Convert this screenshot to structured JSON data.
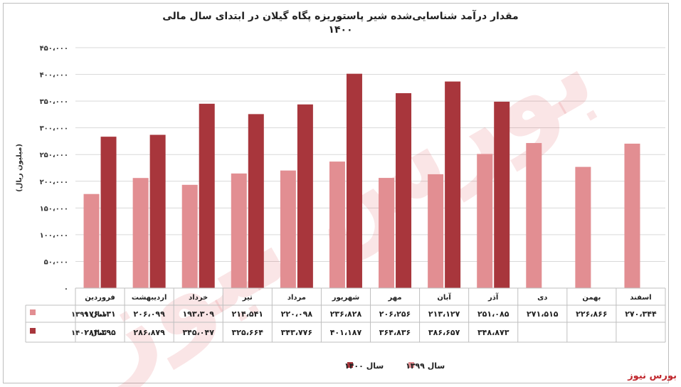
{
  "chart_data": {
    "type": "bar",
    "title": "مقدار درآمد شناسایی‌شده شیر پاستوریزه پگاه گیلان در ابتدای سال مالی ۱۴۰۰",
    "ylabel": "(میلیون ریال)",
    "ylim": [
      0,
      450000
    ],
    "ytick_labels": [
      "۰",
      "۵۰،۰۰۰",
      "۱۰۰،۰۰۰",
      "۱۵۰،۰۰۰",
      "۲۰۰،۰۰۰",
      "۲۵۰،۰۰۰",
      "۳۰۰،۰۰۰",
      "۳۵۰،۰۰۰",
      "۴۰۰،۰۰۰",
      "۴۵۰،۰۰۰"
    ],
    "categories": [
      "فروردین",
      "اردیبهشت",
      "خرداد",
      "تیر",
      "مرداد",
      "شهریور",
      "مهر",
      "آبان",
      "آذر",
      "دی",
      "بهمن",
      "اسفند"
    ],
    "series": [
      {
        "name": "سال ۱۳۹۹",
        "color": "#e28e92",
        "values": [
          176131,
          206099,
          193309,
          214541,
          220098,
          236828,
          206256,
          213127,
          251085,
          271515,
          226866,
          270344
        ],
        "labels": [
          "۱۷۶،۱۳۱",
          "۲۰۶،۰۹۹",
          "۱۹۳،۳۰۹",
          "۲۱۴،۵۴۱",
          "۲۲۰،۰۹۸",
          "۲۳۶،۸۲۸",
          "۲۰۶،۲۵۶",
          "۲۱۳،۱۲۷",
          "۲۵۱،۰۸۵",
          "۲۷۱،۵۱۵",
          "۲۲۶،۸۶۶",
          "۲۷۰،۳۴۴"
        ]
      },
      {
        "name": "سال ۱۴۰۰",
        "color": "#a8363c",
        "values": [
          283395,
          286879,
          345047,
          325664,
          343776,
          401187,
          364836,
          386657,
          348873,
          null,
          null,
          null
        ],
        "labels": [
          "۲۸۳،۳۹۵",
          "۲۸۶،۸۷۹",
          "۳۴۵،۰۴۷",
          "۳۲۵،۶۶۴",
          "۳۴۳،۷۷۶",
          "۴۰۱،۱۸۷",
          "۳۶۴،۸۳۶",
          "۳۸۶،۶۵۷",
          "۳۴۸،۸۷۳",
          "",
          "",
          ""
        ]
      }
    ],
    "legend_position": "bottom",
    "grid": true
  },
  "watermark": "بورس نیوز",
  "source_label": "بورس نیوز"
}
